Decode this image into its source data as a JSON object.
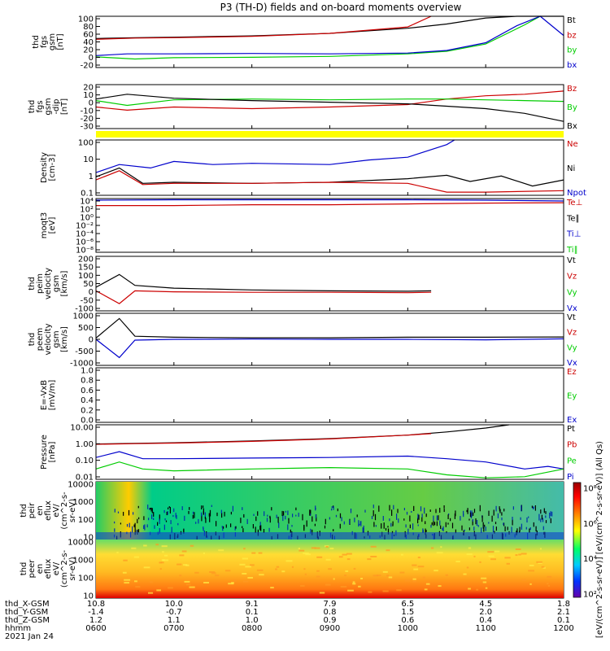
{
  "title": "P3 (TH-D) fields and on-board moments overview",
  "colors": {
    "black": "#000000",
    "red": "#cc0000",
    "green": "#00cc00",
    "blue": "#0000cc",
    "yellow": "#ffff00"
  },
  "chart_data": [
    {
      "type": "line",
      "ylabel": [
        "thd",
        "fgs",
        "gsm",
        "[nT]"
      ],
      "yticks": [
        "100",
        "80",
        "60",
        "40",
        "20",
        "0",
        "-20"
      ],
      "ylim": [
        -20,
        100
      ],
      "legend": [
        {
          "text": "Bt",
          "color": "black"
        },
        {
          "text": "bz",
          "color": "red"
        },
        {
          "text": "by",
          "color": "green"
        },
        {
          "text": "bx",
          "color": "blue"
        }
      ],
      "series": [
        {
          "name": "Bt",
          "color": "black",
          "x": [
            6.0,
            6.5,
            7.0,
            8.0,
            9.0,
            10.0,
            10.5,
            11.0,
            11.4,
            11.7,
            12.0
          ],
          "y": [
            48,
            50,
            51,
            54,
            60,
            72,
            82,
            96,
            100,
            100,
            100
          ]
        },
        {
          "name": "bz",
          "color": "red",
          "x": [
            6.0,
            6.5,
            7.0,
            8.0,
            9.0,
            10.0,
            10.3
          ],
          "y": [
            46,
            49,
            50,
            53,
            60,
            75,
            100
          ]
        },
        {
          "name": "by",
          "color": "green",
          "x": [
            6.0,
            6.5,
            7.0,
            8.0,
            9.0,
            10.0,
            10.5,
            11.0,
            11.5,
            11.7
          ],
          "y": [
            5,
            0,
            3,
            4,
            6,
            12,
            18,
            35,
            80,
            100
          ]
        },
        {
          "name": "bx",
          "color": "blue",
          "x": [
            6.0,
            6.4,
            7.0,
            8.0,
            9.0,
            10.0,
            10.5,
            11.0,
            11.4,
            11.7,
            12.0
          ],
          "y": [
            8,
            12,
            12,
            13,
            12,
            14,
            20,
            38,
            78,
            100,
            55
          ]
        }
      ]
    },
    {
      "type": "line",
      "ylabel": [
        "thd",
        "fgs",
        "gsm",
        "-dip",
        "[nT]"
      ],
      "yticks": [
        "20",
        "10",
        "0",
        "-10",
        "-20",
        "-30"
      ],
      "ylim": [
        -35,
        20
      ],
      "legend": [
        {
          "text": "Bz",
          "color": "red"
        },
        {
          "text": "By",
          "color": "green"
        },
        {
          "text": "Bx",
          "color": "black"
        }
      ],
      "series": [
        {
          "name": "Bz",
          "color": "red",
          "x": [
            6.0,
            6.4,
            7.0,
            8.0,
            9.0,
            10.0,
            10.5,
            11.0,
            11.5,
            12.0
          ],
          "y": [
            -8,
            -12,
            -8,
            -10,
            -8,
            -5,
            2,
            6,
            8,
            12
          ]
        },
        {
          "name": "By",
          "color": "green",
          "x": [
            6.0,
            6.4,
            7.0,
            8.0,
            9.0,
            10.0,
            10.5,
            11.0,
            11.5,
            12.0
          ],
          "y": [
            0,
            -6,
            1,
            2,
            1,
            2,
            2,
            1,
            0,
            -1
          ]
        },
        {
          "name": "Bx",
          "color": "black",
          "x": [
            6.0,
            6.4,
            7.0,
            8.0,
            9.0,
            10.0,
            10.5,
            11.0,
            11.5,
            12.0
          ],
          "y": [
            2,
            8,
            3,
            0,
            -2,
            -4,
            -7,
            -10,
            -16,
            -26
          ]
        }
      ]
    },
    {
      "type": "line",
      "ylabel": [
        "Density",
        "[cm-3]"
      ],
      "yticks": [
        "100",
        "10",
        "1",
        "0.1"
      ],
      "ylim": [
        0.05,
        200
      ],
      "legend": [
        {
          "text": "Ne",
          "color": "red"
        },
        {
          "text": "Ni",
          "color": "black"
        },
        {
          "text": "Npot",
          "color": "blue"
        }
      ],
      "series": [
        {
          "name": "Ni",
          "color": "black",
          "x": [
            6.0,
            6.3,
            6.6,
            7.0,
            8.0,
            9.0,
            10.0,
            10.5,
            10.8,
            11.2,
            11.6,
            12.0
          ],
          "y": [
            0.8,
            3.0,
            0.3,
            0.35,
            0.3,
            0.35,
            0.6,
            1.0,
            0.4,
            0.9,
            0.2,
            0.5
          ]
        },
        {
          "name": "Ne",
          "color": "red",
          "x": [
            6.0,
            6.3,
            6.6,
            7.0,
            8.0,
            9.0,
            10.0,
            10.5,
            11.0,
            12.0
          ],
          "y": [
            0.5,
            2.0,
            0.25,
            0.3,
            0.3,
            0.35,
            0.3,
            0.08,
            0.08,
            0.1
          ]
        },
        {
          "name": "Npot",
          "color": "blue",
          "x": [
            6.0,
            6.3,
            6.7,
            7.0,
            7.5,
            8.0,
            9.0,
            9.5,
            10.0,
            10.5,
            10.6
          ],
          "y": [
            1.5,
            5,
            3,
            8,
            5,
            6,
            5,
            10,
            15,
            100,
            200
          ]
        }
      ]
    },
    {
      "type": "line",
      "ylabel": [
        "moqt3",
        "[eV]"
      ],
      "yticks": [
        "10⁴",
        "10²",
        "10⁰",
        "10⁻²",
        "10⁻⁴",
        "10⁻⁶",
        "10⁻⁸"
      ],
      "ylim": [
        -9,
        4
      ],
      "legend": [
        {
          "text": "Te⊥",
          "color": "red"
        },
        {
          "text": "Te∥",
          "color": "black"
        },
        {
          "text": "Ti⊥",
          "color": "blue"
        },
        {
          "text": "Ti∥",
          "color": "green"
        }
      ],
      "series": [
        {
          "name": "Ti⊥",
          "color": "blue",
          "x": [
            6.0,
            7.0,
            8.0,
            9.0,
            10.0,
            11.0,
            12.0
          ],
          "y": [
            3.6,
            3.7,
            3.7,
            3.7,
            3.7,
            3.6,
            3.4
          ]
        },
        {
          "name": "Te⊥",
          "color": "red",
          "x": [
            6.0,
            7.0,
            8.0,
            9.0,
            10.0,
            11.0,
            12.0
          ],
          "y": [
            2.3,
            2.3,
            2.5,
            2.5,
            2.7,
            2.9,
            3.0
          ]
        }
      ]
    },
    {
      "type": "line",
      "ylabel": [
        "thd",
        "peim",
        "velocity",
        "gsm",
        "[km/s]"
      ],
      "yticks": [
        "200",
        "150",
        "100",
        "50",
        "0",
        "-50",
        "-100"
      ],
      "ylim": [
        -100,
        200
      ],
      "legend": [
        {
          "text": "Vt",
          "color": "black"
        },
        {
          "text": "Vz",
          "color": "red"
        },
        {
          "text": "Vy",
          "color": "green"
        },
        {
          "text": "Vx",
          "color": "blue"
        }
      ],
      "series": [
        {
          "name": "Vt",
          "color": "black",
          "x": [
            6.0,
            6.3,
            6.5,
            7.0,
            8.0,
            9.0,
            10.0,
            10.3
          ],
          "y": [
            30,
            100,
            40,
            25,
            15,
            10,
            8,
            10
          ]
        },
        {
          "name": "Vz",
          "color": "red",
          "x": [
            6.0,
            6.3,
            6.5,
            7.0,
            8.0,
            9.0,
            10.0,
            10.3
          ],
          "y": [
            10,
            -60,
            10,
            5,
            2,
            2,
            0,
            2
          ]
        }
      ]
    },
    {
      "type": "line",
      "ylabel": [
        "thd",
        "peem",
        "velocity",
        "gsm",
        "[km/s]"
      ],
      "yticks": [
        "1000",
        "500",
        "0",
        "-500",
        "-1000"
      ],
      "ylim": [
        -1000,
        1000
      ],
      "legend": [
        {
          "text": "Vt",
          "color": "black"
        },
        {
          "text": "Vz",
          "color": "red"
        },
        {
          "text": "Vy",
          "color": "green"
        },
        {
          "text": "Vx",
          "color": "blue"
        }
      ],
      "series": [
        {
          "name": "Vt",
          "color": "black",
          "x": [
            6.0,
            6.3,
            6.5,
            7.0,
            8.0,
            9.0,
            10.0,
            11.0,
            12.0
          ],
          "y": [
            50,
            800,
            120,
            80,
            60,
            60,
            80,
            80,
            90
          ]
        },
        {
          "name": "Vx",
          "color": "blue",
          "x": [
            6.0,
            6.3,
            6.5,
            7.0,
            8.0,
            9.0,
            10.0,
            11.0,
            12.0
          ],
          "y": [
            0,
            -700,
            -30,
            0,
            10,
            0,
            0,
            -20,
            20
          ]
        }
      ]
    },
    {
      "type": "line",
      "ylabel": [
        "E=-VxB",
        "[mV/m]"
      ],
      "yticks": [
        "1.0",
        "0.8",
        "0.6",
        "0.4",
        "0.2",
        "0.0"
      ],
      "ylim": [
        0,
        1
      ],
      "legend": [
        {
          "text": "Ez",
          "color": "red"
        },
        {
          "text": "Ey",
          "color": "green"
        },
        {
          "text": "Ex",
          "color": "blue"
        }
      ],
      "series": []
    },
    {
      "type": "line",
      "ylabel": [
        "Pressure",
        "[nPa]"
      ],
      "yticks": [
        "10.00",
        "1.00",
        "0.10",
        "0.01"
      ],
      "ylim": [
        0.004,
        20
      ],
      "legend": [
        {
          "text": "Pt",
          "color": "black"
        },
        {
          "text": "Pb",
          "color": "red"
        },
        {
          "text": "Pe",
          "color": "green"
        },
        {
          "text": "Pi",
          "color": "blue"
        }
      ],
      "series": [
        {
          "name": "Pt",
          "color": "black",
          "x": [
            6.0,
            6.5,
            7.0,
            8.0,
            9.0,
            10.0,
            10.5,
            11.0,
            11.3
          ],
          "y": [
            1.0,
            1.1,
            1.2,
            1.6,
            2.3,
            4.0,
            6.5,
            12,
            20
          ]
        },
        {
          "name": "Pb",
          "color": "red",
          "x": [
            6.0,
            6.5,
            7.0,
            8.0,
            9.0,
            10.0,
            10.3
          ],
          "y": [
            0.95,
            1.05,
            1.15,
            1.5,
            2.2,
            4.0,
            5.0
          ]
        },
        {
          "name": "Pi",
          "color": "blue",
          "x": [
            6.0,
            6.3,
            6.6,
            7.0,
            8.0,
            9.0,
            10.0,
            10.5,
            11.0,
            11.5,
            11.8,
            12.0
          ],
          "y": [
            0.12,
            0.3,
            0.1,
            0.1,
            0.11,
            0.12,
            0.15,
            0.1,
            0.06,
            0.02,
            0.03,
            0.02
          ]
        },
        {
          "name": "Pe",
          "color": "green",
          "x": [
            6.0,
            6.3,
            6.6,
            7.0,
            8.0,
            9.0,
            10.0,
            10.5,
            11.0,
            11.5,
            12.0
          ],
          "y": [
            0.02,
            0.06,
            0.02,
            0.015,
            0.02,
            0.025,
            0.02,
            0.008,
            0.005,
            0.006,
            0.02
          ]
        }
      ]
    },
    {
      "type": "heatmap",
      "ylabel": [
        "thd",
        "peir",
        "en",
        "eflux",
        "eV/",
        "(cm^2-s-",
        "sr-eV)"
      ],
      "yticks": [
        "10000",
        "1000",
        "100",
        "10"
      ],
      "ylim": [
        5,
        25000
      ]
    },
    {
      "type": "heatmap",
      "ylabel": [
        "thd",
        "peer",
        "en",
        "eflux",
        "eV/",
        "(cm^2-s-",
        "sr-eV)"
      ],
      "yticks": [
        "10000",
        "1000",
        "100",
        "10"
      ],
      "ylim": [
        5,
        25000
      ]
    }
  ],
  "colorbar": {
    "ticks": [
      "10⁸",
      "10⁶",
      "10⁴",
      "10²"
    ],
    "label": "[eV/(cm^2-s-sr-eV)] [eV/(cm^2-s-sr-eV)] (All Qs)"
  },
  "x_axis": {
    "range": [
      6.0,
      12.0
    ],
    "rows": [
      {
        "label": "thd_X-GSM",
        "values": [
          "10.8",
          "10.0",
          "9.1",
          "7.9",
          "6.5",
          "4.5",
          "1.8"
        ]
      },
      {
        "label": "thd_Y-GSM",
        "values": [
          "-1.4",
          "-0.7",
          "0.1",
          "0.8",
          "1.5",
          "2.0",
          "2.1"
        ]
      },
      {
        "label": "thd_Z-GSM",
        "values": [
          "1.2",
          "1.1",
          "1.0",
          "0.9",
          "0.6",
          "0.4",
          "0.1"
        ]
      },
      {
        "label": "hhmm",
        "values": [
          "0600",
          "0700",
          "0800",
          "0900",
          "1000",
          "1100",
          "1200"
        ]
      }
    ],
    "date": "2021 Jan 24"
  }
}
